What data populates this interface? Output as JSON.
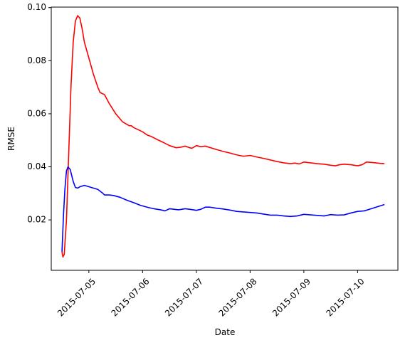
{
  "chart_data": {
    "type": "line",
    "title": "",
    "xlabel": "Date",
    "ylabel": "RMSE",
    "x_ticks": [
      "2015-07-05",
      "2015-07-06",
      "2015-07-07",
      "2015-07-08",
      "2015-07-09",
      "2015-07-10"
    ],
    "y_ticks": [
      "0.02",
      "0.04",
      "0.06",
      "0.08",
      "0.10"
    ],
    "xlim": [
      "2015-07-04T07:12",
      "2015-07-10T18:00"
    ],
    "ylim": [
      0.001,
      0.1002
    ],
    "grid": false,
    "legend": false,
    "series": [
      {
        "color": "#ff0000",
        "points": [
          [
            "2015-07-04T12:00",
            0.008
          ],
          [
            "2015-07-04T12:25",
            0.006
          ],
          [
            "2015-07-04T13:00",
            0.007
          ],
          [
            "2015-07-04T14:00",
            0.02
          ],
          [
            "2015-07-04T15:00",
            0.045
          ],
          [
            "2015-07-04T16:00",
            0.07
          ],
          [
            "2015-07-04T17:00",
            0.087
          ],
          [
            "2015-07-04T18:00",
            0.095
          ],
          [
            "2015-07-04T19:00",
            0.097
          ],
          [
            "2015-07-04T20:00",
            0.096
          ],
          [
            "2015-07-04T21:00",
            0.092
          ],
          [
            "2015-07-04T22:00",
            0.087
          ],
          [
            "2015-07-05T00:00",
            0.081
          ],
          [
            "2015-07-05T02:00",
            0.075
          ],
          [
            "2015-07-05T04:00",
            0.07
          ],
          [
            "2015-07-05T05:00",
            0.068
          ],
          [
            "2015-07-05T07:00",
            0.0672
          ],
          [
            "2015-07-05T09:00",
            0.064
          ],
          [
            "2015-07-05T12:00",
            0.06
          ],
          [
            "2015-07-05T15:00",
            0.057
          ],
          [
            "2015-07-05T18:00",
            0.0555
          ],
          [
            "2015-07-05T19:00",
            0.0555
          ],
          [
            "2015-07-05T20:00",
            0.0548
          ],
          [
            "2015-07-05T22:00",
            0.054
          ],
          [
            "2015-07-06T00:00",
            0.0532
          ],
          [
            "2015-07-06T02:00",
            0.052
          ],
          [
            "2015-07-06T04:00",
            0.0514
          ],
          [
            "2015-07-06T06:00",
            0.0505
          ],
          [
            "2015-07-06T09:00",
            0.0493
          ],
          [
            "2015-07-06T12:00",
            0.048
          ],
          [
            "2015-07-06T15:00",
            0.0472
          ],
          [
            "2015-07-06T17:00",
            0.0474
          ],
          [
            "2015-07-06T19:00",
            0.0478
          ],
          [
            "2015-07-06T21:00",
            0.0472
          ],
          [
            "2015-07-06T22:00",
            0.047
          ],
          [
            "2015-07-07T00:00",
            0.048
          ],
          [
            "2015-07-07T02:00",
            0.0476
          ],
          [
            "2015-07-07T04:00",
            0.0478
          ],
          [
            "2015-07-07T06:00",
            0.0473
          ],
          [
            "2015-07-07T09:00",
            0.0465
          ],
          [
            "2015-07-07T12:00",
            0.0458
          ],
          [
            "2015-07-07T15:00",
            0.0452
          ],
          [
            "2015-07-07T18:00",
            0.0445
          ],
          [
            "2015-07-07T21:00",
            0.044
          ],
          [
            "2015-07-08T00:00",
            0.0443
          ],
          [
            "2015-07-08T03:00",
            0.0437
          ],
          [
            "2015-07-08T06:00",
            0.0432
          ],
          [
            "2015-07-08T09:00",
            0.0426
          ],
          [
            "2015-07-08T12:00",
            0.042
          ],
          [
            "2015-07-08T15:00",
            0.0415
          ],
          [
            "2015-07-08T18:00",
            0.0412
          ],
          [
            "2015-07-08T20:00",
            0.0414
          ],
          [
            "2015-07-08T22:00",
            0.0411
          ],
          [
            "2015-07-09T00:00",
            0.0418
          ],
          [
            "2015-07-09T03:00",
            0.0415
          ],
          [
            "2015-07-09T06:00",
            0.0412
          ],
          [
            "2015-07-09T09:00",
            0.041
          ],
          [
            "2015-07-09T12:00",
            0.0406
          ],
          [
            "2015-07-09T14:00",
            0.0404
          ],
          [
            "2015-07-09T16:00",
            0.0408
          ],
          [
            "2015-07-09T18:00",
            0.041
          ],
          [
            "2015-07-09T21:00",
            0.0408
          ],
          [
            "2015-07-10T00:00",
            0.0404
          ],
          [
            "2015-07-10T02:00",
            0.0408
          ],
          [
            "2015-07-10T04:00",
            0.0418
          ],
          [
            "2015-07-10T07:00",
            0.0416
          ],
          [
            "2015-07-10T10:00",
            0.0413
          ],
          [
            "2015-07-10T12:00",
            0.0412
          ]
        ]
      },
      {
        "color": "#0000ff",
        "points": [
          [
            "2015-07-04T12:00",
            0.008
          ],
          [
            "2015-07-04T12:40",
            0.022
          ],
          [
            "2015-07-04T13:20",
            0.032
          ],
          [
            "2015-07-04T14:00",
            0.0385
          ],
          [
            "2015-07-04T14:40",
            0.04
          ],
          [
            "2015-07-04T15:40",
            0.039
          ],
          [
            "2015-07-04T17:00",
            0.0345
          ],
          [
            "2015-07-04T18:00",
            0.0322
          ],
          [
            "2015-07-04T19:00",
            0.032
          ],
          [
            "2015-07-04T20:00",
            0.0325
          ],
          [
            "2015-07-04T22:00",
            0.033
          ],
          [
            "2015-07-05T00:00",
            0.0325
          ],
          [
            "2015-07-05T02:00",
            0.032
          ],
          [
            "2015-07-05T04:00",
            0.0315
          ],
          [
            "2015-07-05T06:00",
            0.0302
          ],
          [
            "2015-07-05T07:00",
            0.0294
          ],
          [
            "2015-07-05T09:00",
            0.0294
          ],
          [
            "2015-07-05T11:00",
            0.0292
          ],
          [
            "2015-07-05T14:00",
            0.0285
          ],
          [
            "2015-07-05T17:00",
            0.0274
          ],
          [
            "2015-07-05T20:00",
            0.0265
          ],
          [
            "2015-07-05T23:00",
            0.0255
          ],
          [
            "2015-07-06T02:00",
            0.0248
          ],
          [
            "2015-07-06T05:00",
            0.0242
          ],
          [
            "2015-07-06T08:00",
            0.0238
          ],
          [
            "2015-07-06T10:00",
            0.0234
          ],
          [
            "2015-07-06T12:00",
            0.0242
          ],
          [
            "2015-07-06T14:00",
            0.024
          ],
          [
            "2015-07-06T16:00",
            0.0238
          ],
          [
            "2015-07-06T19:00",
            0.0242
          ],
          [
            "2015-07-06T21:00",
            0.024
          ],
          [
            "2015-07-07T00:00",
            0.0236
          ],
          [
            "2015-07-07T02:00",
            0.024
          ],
          [
            "2015-07-07T04:00",
            0.0248
          ],
          [
            "2015-07-07T06:00",
            0.0248
          ],
          [
            "2015-07-07T09:00",
            0.0244
          ],
          [
            "2015-07-07T12:00",
            0.0241
          ],
          [
            "2015-07-07T15:00",
            0.0237
          ],
          [
            "2015-07-07T18:00",
            0.0232
          ],
          [
            "2015-07-07T21:00",
            0.023
          ],
          [
            "2015-07-08T00:00",
            0.0228
          ],
          [
            "2015-07-08T03:00",
            0.0226
          ],
          [
            "2015-07-08T06:00",
            0.0222
          ],
          [
            "2015-07-08T09:00",
            0.0218
          ],
          [
            "2015-07-08T12:00",
            0.0218
          ],
          [
            "2015-07-08T15:00",
            0.0215
          ],
          [
            "2015-07-08T18:00",
            0.0213
          ],
          [
            "2015-07-08T21:00",
            0.0215
          ],
          [
            "2015-07-09T00:00",
            0.0221
          ],
          [
            "2015-07-09T03:00",
            0.0219
          ],
          [
            "2015-07-09T06:00",
            0.0217
          ],
          [
            "2015-07-09T09:00",
            0.0215
          ],
          [
            "2015-07-09T12:00",
            0.022
          ],
          [
            "2015-07-09T15:00",
            0.0218
          ],
          [
            "2015-07-09T18:00",
            0.0219
          ],
          [
            "2015-07-09T21:00",
            0.0226
          ],
          [
            "2015-07-10T00:00",
            0.0232
          ],
          [
            "2015-07-10T03:00",
            0.0234
          ],
          [
            "2015-07-10T06:00",
            0.0242
          ],
          [
            "2015-07-10T09:00",
            0.025
          ],
          [
            "2015-07-10T12:00",
            0.0258
          ]
        ]
      }
    ]
  }
}
